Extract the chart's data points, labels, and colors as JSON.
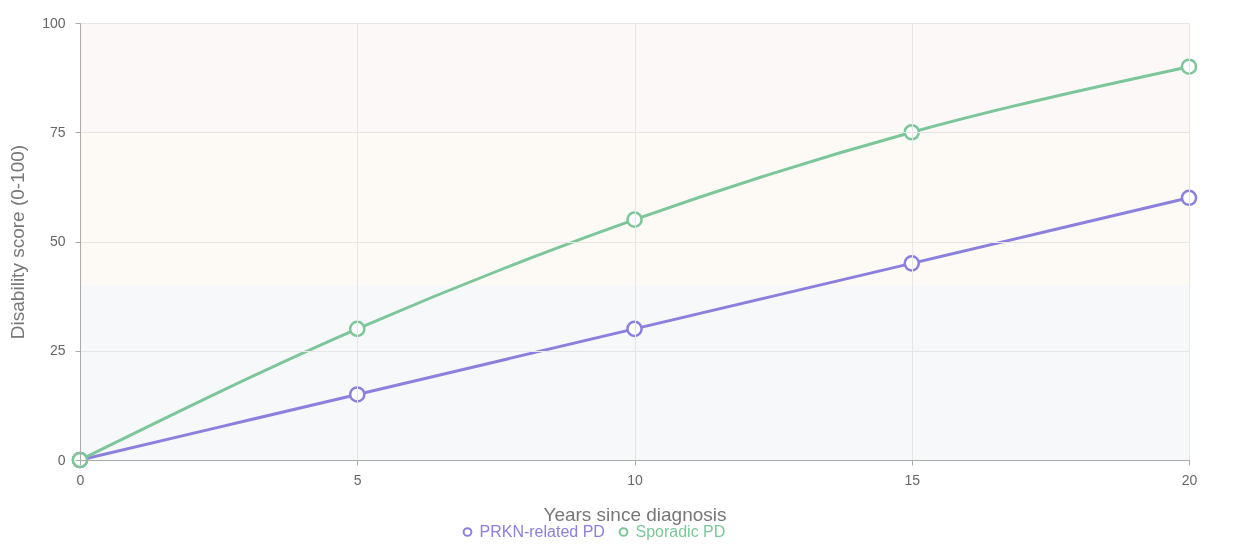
{
  "chart_data": {
    "type": "line",
    "xlabel": "Years since diagnosis",
    "ylabel": "Disability score (0-100)",
    "x": [
      0,
      5,
      10,
      15,
      20
    ],
    "series": [
      {
        "name": "PRKN-related PD",
        "color": "#8b80dd",
        "values": [
          0,
          15,
          30,
          45,
          60
        ]
      },
      {
        "name": "Sporadic PD",
        "color": "#7cc79a",
        "values": [
          0,
          30,
          55,
          75,
          90
        ]
      }
    ],
    "xlim": [
      0,
      20
    ],
    "xticks": [
      0,
      5,
      10,
      15,
      20
    ],
    "ylim": [
      0,
      100
    ],
    "yticks": [
      0,
      25,
      50,
      75,
      100
    ],
    "bands": [
      {
        "axis": "y",
        "from": 0,
        "to": 40,
        "color": "#f7f8fa"
      },
      {
        "axis": "y",
        "from": 40,
        "to": 75,
        "color": "#fdfaf5"
      },
      {
        "axis": "y",
        "from": 75,
        "to": 100,
        "color": "#fcf8f7"
      }
    ],
    "grid": true,
    "legend": "bottom",
    "marker": "circle",
    "line_style": "solid"
  }
}
